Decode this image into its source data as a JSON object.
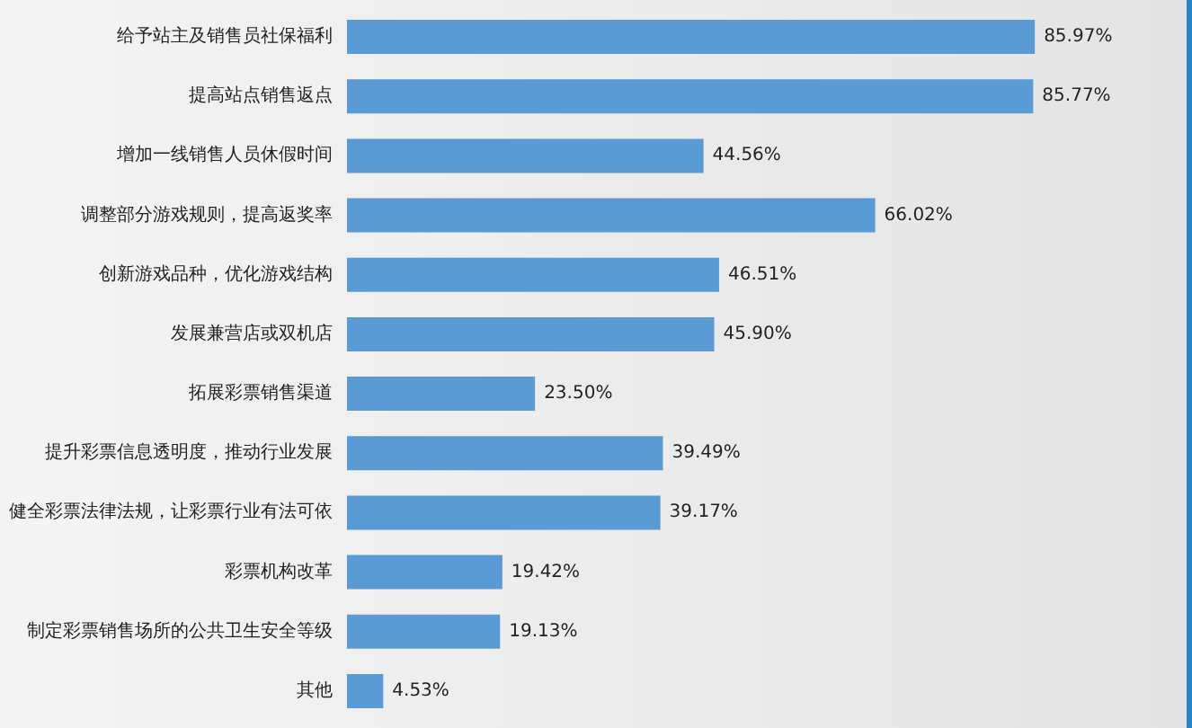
{
  "chart_data": {
    "type": "bar",
    "orientation": "horizontal",
    "categories": [
      "给予站主及销售员社保福利",
      "提高站点销售返点",
      "增加一线销售人员休假时间",
      "调整部分游戏规则，提高返奖率",
      "创新游戏品种，优化游戏结构",
      "发展兼营店或双机店",
      "拓展彩票销售渠道",
      "提升彩票信息透明度，推动行业发展",
      "健全彩票法律法规，让彩票行业有法可依",
      "彩票机构改革",
      "制定彩票销售场所的公共卫生安全等级",
      "其他"
    ],
    "values": [
      85.97,
      85.77,
      44.56,
      66.02,
      46.51,
      45.9,
      23.5,
      39.49,
      39.17,
      19.42,
      19.13,
      4.53
    ],
    "value_labels": [
      "85.97%",
      "85.77%",
      "44.56%",
      "66.02%",
      "46.51%",
      "45.90%",
      "23.50%",
      "39.49%",
      "39.17%",
      "19.42%",
      "19.13%",
      "4.53%"
    ],
    "color": "#5b9bd5"
  }
}
